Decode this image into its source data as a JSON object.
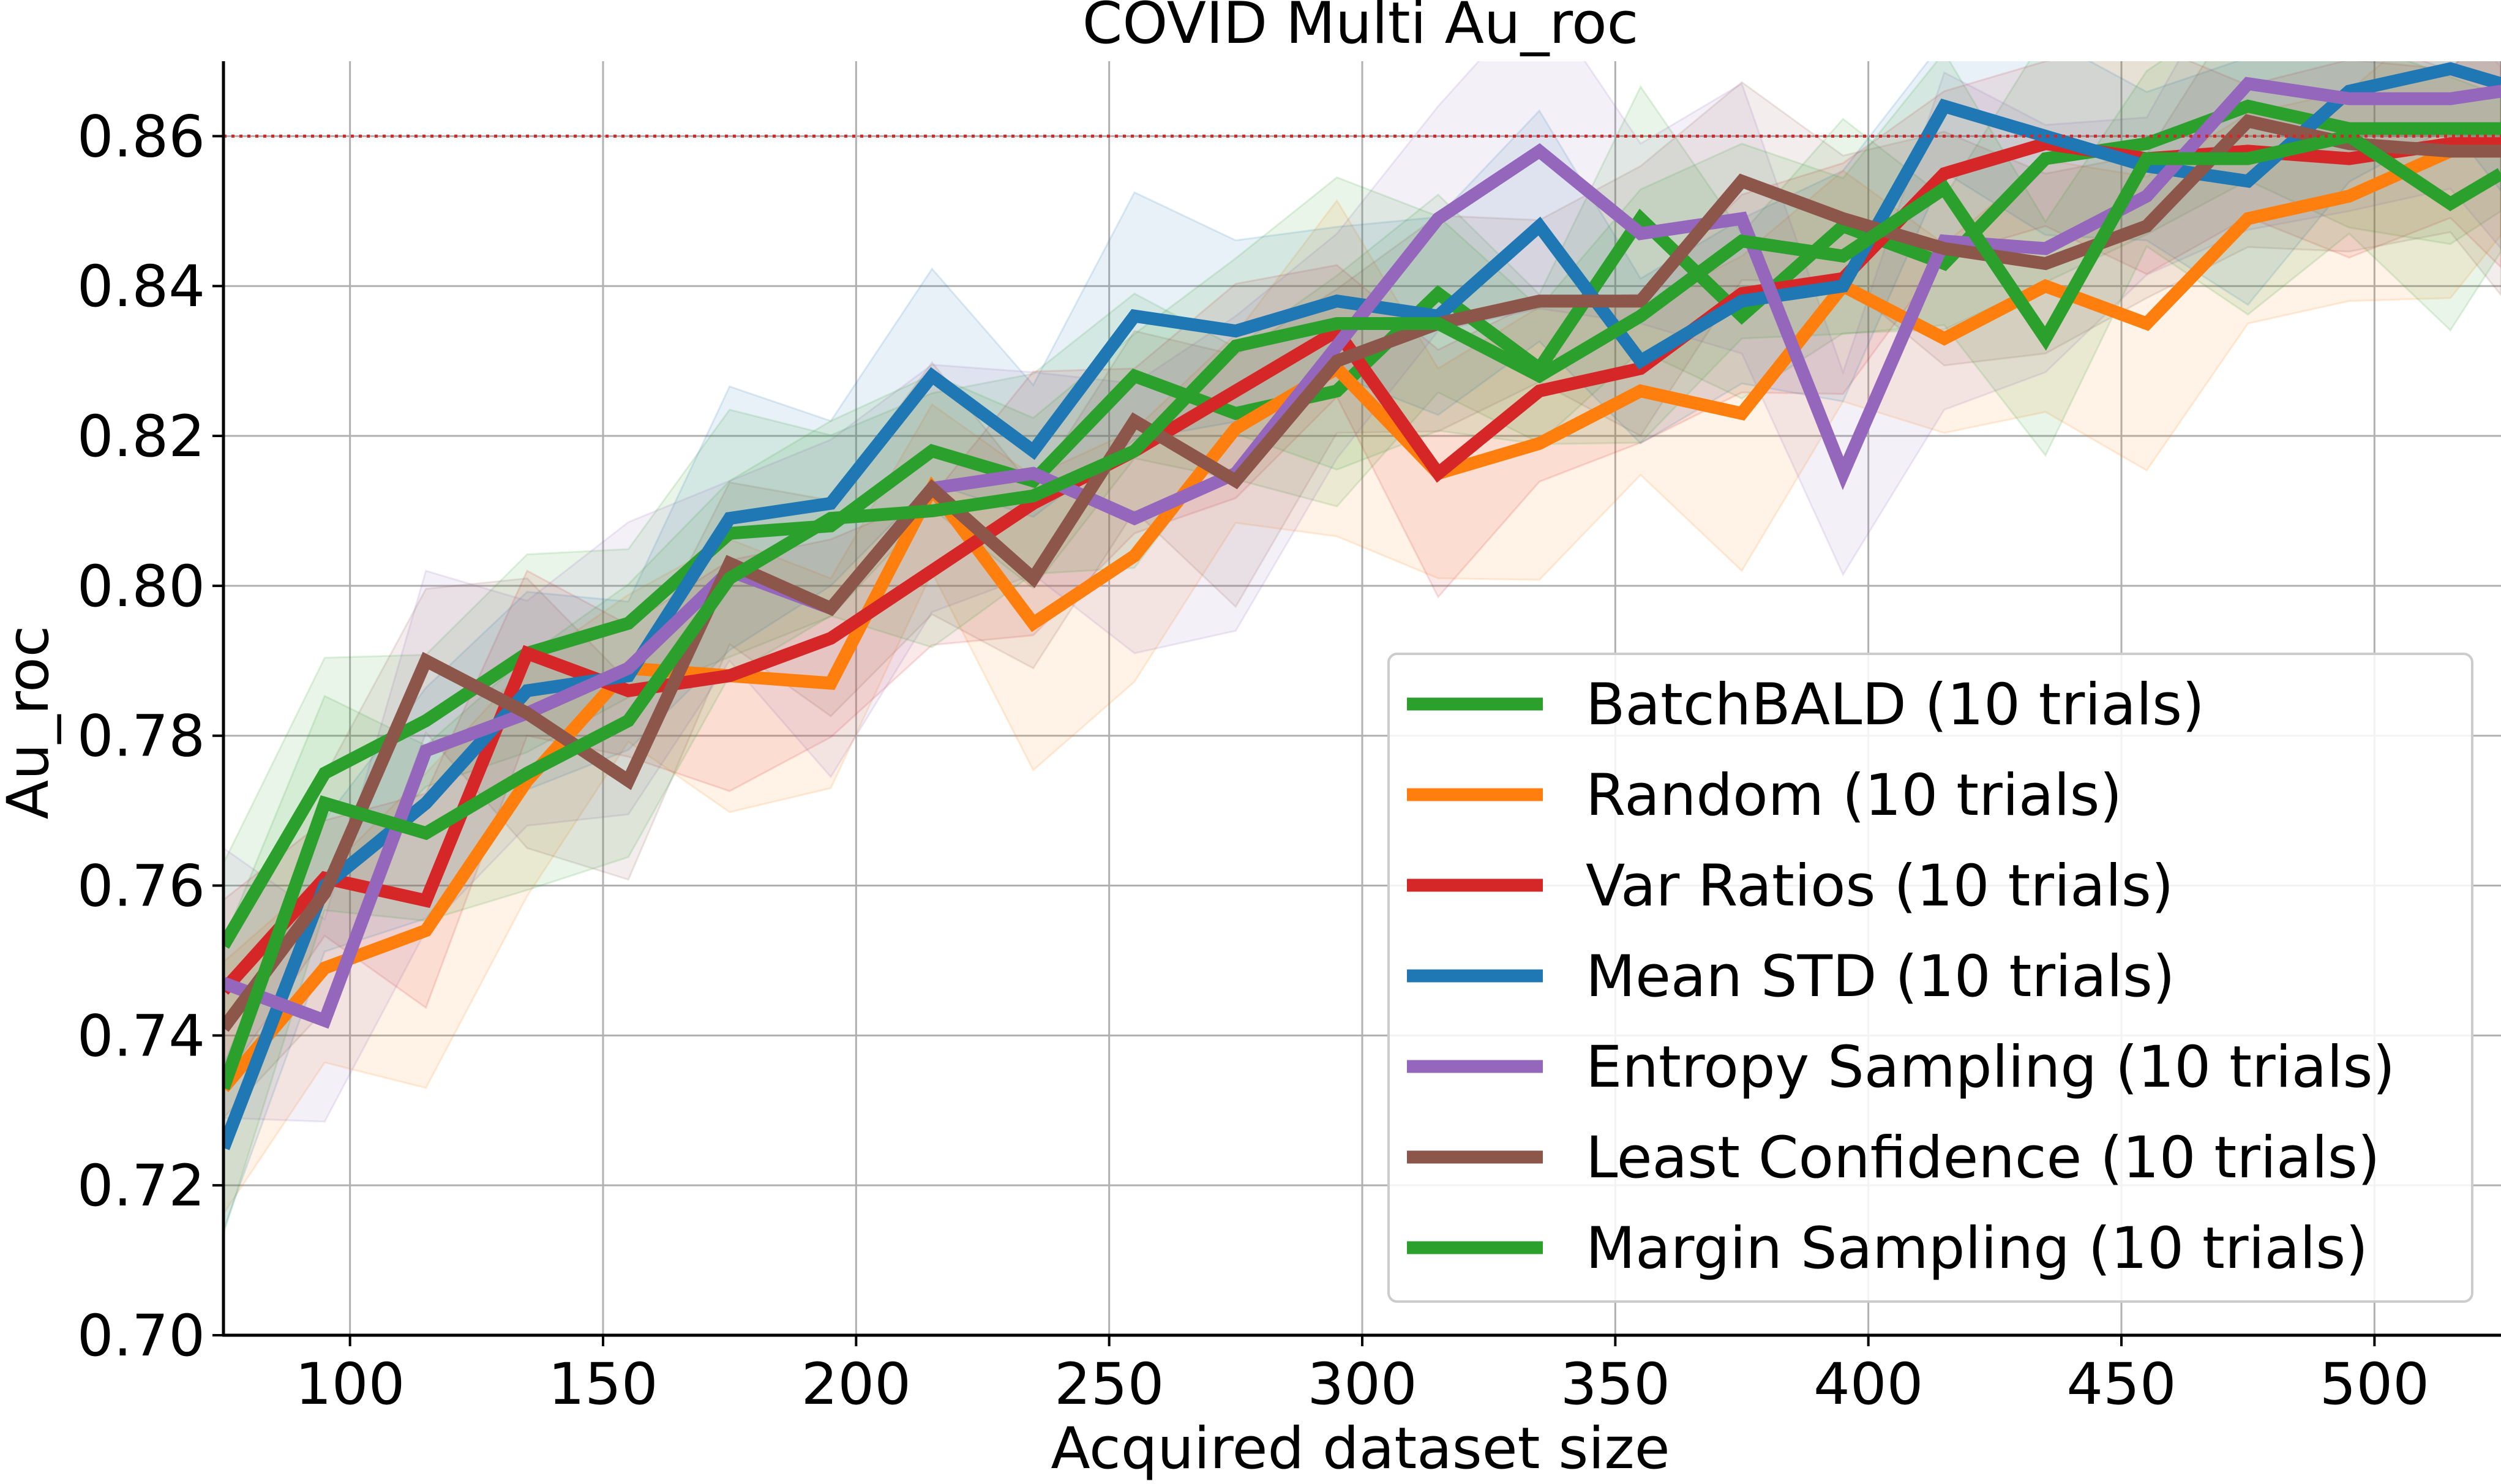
{
  "chart_data": {
    "type": "line",
    "title": "COVID Multi Au_roc",
    "xlabel": "Acquired dataset size",
    "ylabel": "Au_roc",
    "xlim": [
      75,
      525
    ],
    "ylim": [
      0.7,
      0.87
    ],
    "xticks": [
      100,
      150,
      200,
      250,
      300,
      350,
      400,
      450,
      500
    ],
    "xtick_labels": [
      "100",
      "150",
      "200",
      "250",
      "300",
      "350",
      "400",
      "450",
      "500"
    ],
    "yticks": [
      0.7,
      0.72,
      0.74,
      0.76,
      0.78,
      0.8,
      0.82,
      0.84,
      0.86
    ],
    "ytick_labels": [
      "0.70",
      "0.72",
      "0.74",
      "0.76",
      "0.78",
      "0.80",
      "0.82",
      "0.84",
      "0.86"
    ],
    "grid": true,
    "legend_position": "lower-right",
    "reference_line": {
      "y": 0.86,
      "color": "#d62728",
      "style": "dotted"
    },
    "x": [
      75,
      95,
      115,
      135,
      155,
      175,
      195,
      215,
      235,
      255,
      275,
      295,
      315,
      335,
      355,
      375,
      395,
      415,
      435,
      455,
      475,
      495,
      515,
      525
    ],
    "series": [
      {
        "name": "BatchBALD (10 trials)",
        "color": "#2ca02c",
        "values": [
          0.752,
          0.775,
          0.782,
          0.791,
          0.795,
          0.807,
          0.808,
          0.818,
          0.814,
          0.828,
          0.823,
          0.826,
          0.839,
          0.829,
          0.849,
          0.836,
          0.848,
          0.843,
          0.857,
          0.859,
          0.864,
          0.861,
          0.861,
          0.861
        ],
        "band": 0.011
      },
      {
        "name": "Random (10 trials)",
        "color": "#ff7f0e",
        "values": [
          0.733,
          0.749,
          0.754,
          0.774,
          0.789,
          0.788,
          0.787,
          0.813,
          0.795,
          0.804,
          0.821,
          0.829,
          0.815,
          0.819,
          0.826,
          0.823,
          0.84,
          0.833,
          0.84,
          0.835,
          0.849,
          0.852,
          0.858,
          0.858
        ],
        "band": 0.014
      },
      {
        "name": "Var Ratios (10 trials)",
        "color": "#d62728",
        "values": [
          0.746,
          0.761,
          0.758,
          0.791,
          0.786,
          0.788,
          0.793,
          0.802,
          0.811,
          0.818,
          0.826,
          0.834,
          0.815,
          0.826,
          0.829,
          0.839,
          0.841,
          0.855,
          0.859,
          0.857,
          0.858,
          0.857,
          0.859,
          0.859
        ],
        "band": 0.011
      },
      {
        "name": "Mean STD (10 trials)",
        "color": "#1f77b4",
        "values": [
          0.725,
          0.76,
          0.771,
          0.786,
          0.788,
          0.809,
          0.811,
          0.828,
          0.818,
          0.836,
          0.834,
          0.838,
          0.836,
          0.848,
          0.83,
          0.838,
          0.84,
          0.864,
          0.86,
          0.856,
          0.854,
          0.866,
          0.869,
          0.867
        ],
        "band": 0.011
      },
      {
        "name": "Entropy Sampling (10 trials)",
        "color": "#9467bd",
        "values": [
          0.747,
          0.742,
          0.778,
          0.783,
          0.789,
          0.802,
          0.797,
          0.813,
          0.815,
          0.809,
          0.815,
          0.832,
          0.849,
          0.858,
          0.847,
          0.849,
          0.815,
          0.846,
          0.845,
          0.852,
          0.867,
          0.865,
          0.865,
          0.866
        ],
        "band": 0.015
      },
      {
        "name": "Least Confidence (10 trials)",
        "color": "#8c564b",
        "values": [
          0.741,
          0.759,
          0.79,
          0.783,
          0.774,
          0.803,
          0.797,
          0.813,
          0.801,
          0.822,
          0.814,
          0.83,
          0.835,
          0.838,
          0.838,
          0.854,
          0.849,
          0.845,
          0.843,
          0.848,
          0.862,
          0.859,
          0.858,
          0.858
        ],
        "band": 0.012
      },
      {
        "name": "Margin Sampling (10 trials)",
        "color": "#2ca02c",
        "values": [
          0.733,
          0.771,
          0.767,
          0.775,
          0.782,
          0.801,
          0.809,
          0.81,
          0.812,
          0.818,
          0.832,
          0.835,
          0.835,
          0.828,
          0.836,
          0.846,
          0.844,
          0.853,
          0.833,
          0.857,
          0.857,
          0.86,
          0.851,
          0.855
        ],
        "band": 0.013
      }
    ]
  }
}
